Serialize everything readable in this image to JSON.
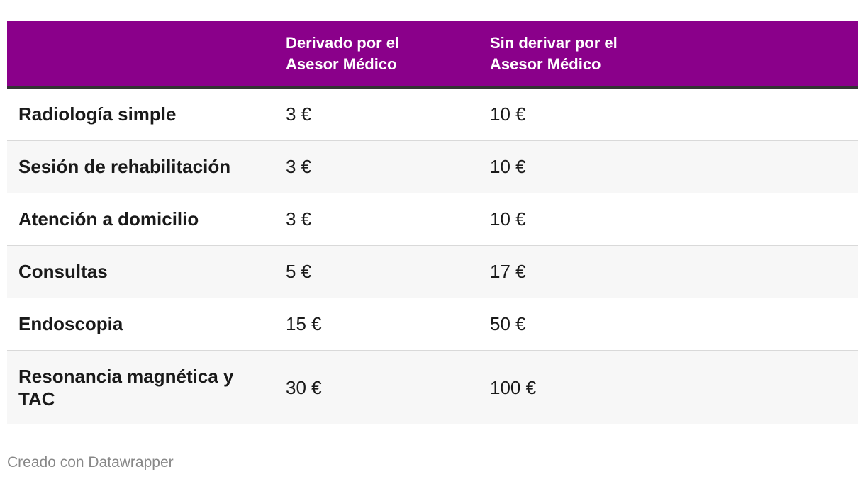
{
  "table": {
    "headers": [
      "",
      [
        "Derivado por el",
        "Asesor Médico"
      ],
      [
        "Sin derivar por el",
        "Asesor Médico"
      ]
    ],
    "rows": [
      {
        "label": "Radiología simple",
        "derivado": "3 €",
        "sin_derivar": "10 €"
      },
      {
        "label": "Sesión de rehabilitación",
        "derivado": "3 €",
        "sin_derivar": "10 €"
      },
      {
        "label": "Atención a domicilio",
        "derivado": "3 €",
        "sin_derivar": "10 €"
      },
      {
        "label": "Consultas",
        "derivado": "5 €",
        "sin_derivar": "17 €"
      },
      {
        "label": "Endoscopia",
        "derivado": "15 €",
        "sin_derivar": "50 €"
      },
      {
        "label": "Resonancia magnética y TAC",
        "derivado": "30 €",
        "sin_derivar": "100 €"
      }
    ]
  },
  "footer": {
    "credit": "Creado con Datawrapper"
  },
  "colors": {
    "header_background": "#8a008a",
    "header_text": "#ffffff",
    "stripe": "#f7f7f7",
    "credit_text": "#888888"
  }
}
